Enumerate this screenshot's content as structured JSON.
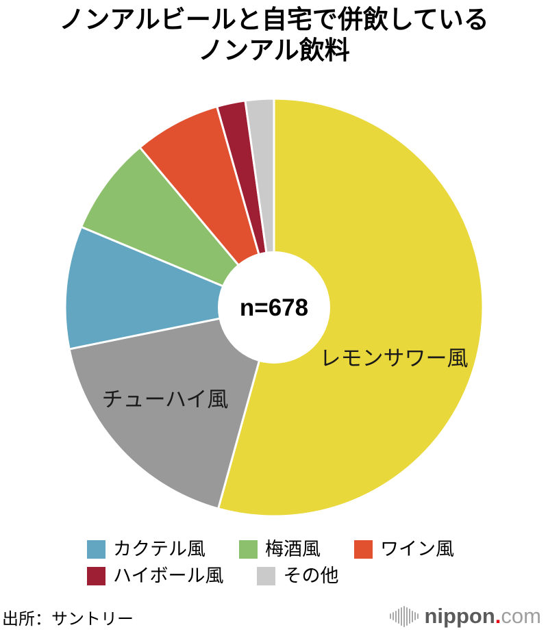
{
  "header": {
    "title_line1": "ノンアルビールと自宅で併飲している",
    "title_line2": "ノンアル飲料"
  },
  "chart_data": {
    "type": "pie",
    "title": "ノンアルビールと自宅で併飲しているノンアル飲料",
    "center_label": "n=678",
    "donut": true,
    "hole_ratio": 0.27,
    "start_angle_deg": 0,
    "direction": "clockwise",
    "note": "percentage values estimated from slice angles; numbers are not printed on the chart",
    "slices": [
      {
        "label": "レモンサワー風",
        "value": 54.3,
        "color": "#e9d83c",
        "label_in_slice": true
      },
      {
        "label": "チューハイ風",
        "value": 17.5,
        "color": "#999999",
        "label_in_slice": true
      },
      {
        "label": "カクテル風",
        "value": 9.5,
        "color": "#63a6c1",
        "label_in_slice": false
      },
      {
        "label": "梅酒風",
        "value": 7.6,
        "color": "#8dc06c",
        "label_in_slice": false
      },
      {
        "label": "ワイン風",
        "value": 6.7,
        "color": "#e1512f",
        "label_in_slice": false
      },
      {
        "label": "ハイボール風",
        "value": 2.2,
        "color": "#9e1f33",
        "label_in_slice": false
      },
      {
        "label": "その他",
        "value": 2.2,
        "color": "#cacaca",
        "label_in_slice": false
      }
    ]
  },
  "legend": {
    "items": [
      {
        "label": "カクテル風",
        "color": "#63a6c1"
      },
      {
        "label": "梅酒風",
        "color": "#8dc06c"
      },
      {
        "label": "ワイン風",
        "color": "#e1512f"
      },
      {
        "label": "ハイボール風",
        "color": "#9e1f33"
      },
      {
        "label": "その他",
        "color": "#cacaca"
      }
    ]
  },
  "footer": {
    "source": "出所：サントリー",
    "logo": {
      "icon": "soundwave-bars-icon",
      "name_bold": "nippon",
      "dot": ".",
      "name_light": "com"
    }
  }
}
